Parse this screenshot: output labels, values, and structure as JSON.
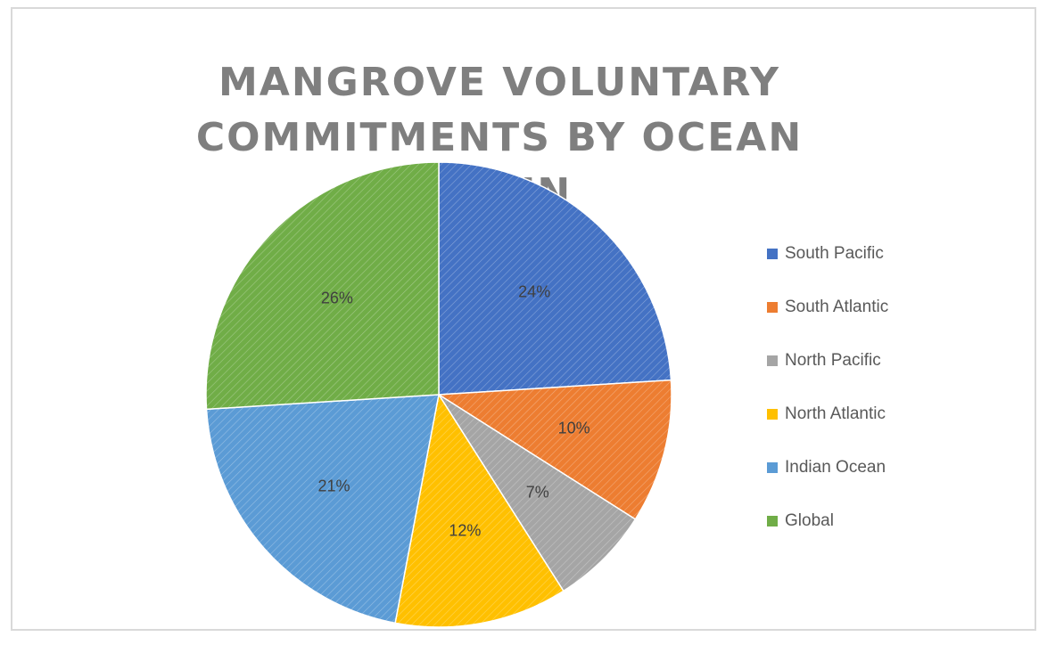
{
  "chart_data": {
    "type": "pie",
    "title": "MANGROVE VOLUNTARY COMMITMENTS BY OCEAN BASIN",
    "legend_position": "right",
    "slices": [
      {
        "name": "South Pacific",
        "value": 24,
        "label": "24%",
        "color": "#4472c4"
      },
      {
        "name": "South Atlantic",
        "value": 10,
        "label": "10%",
        "color": "#ed7d31"
      },
      {
        "name": "North Pacific",
        "value": 7,
        "label": "7%",
        "color": "#a5a5a5"
      },
      {
        "name": "North Atlantic",
        "value": 12,
        "label": "12%",
        "color": "#ffc000"
      },
      {
        "name": "Indian Ocean",
        "value": 21,
        "label": "21%",
        "color": "#5b9bd5"
      },
      {
        "name": "Global",
        "value": 26,
        "label": "26%",
        "color": "#70ad47"
      }
    ]
  }
}
